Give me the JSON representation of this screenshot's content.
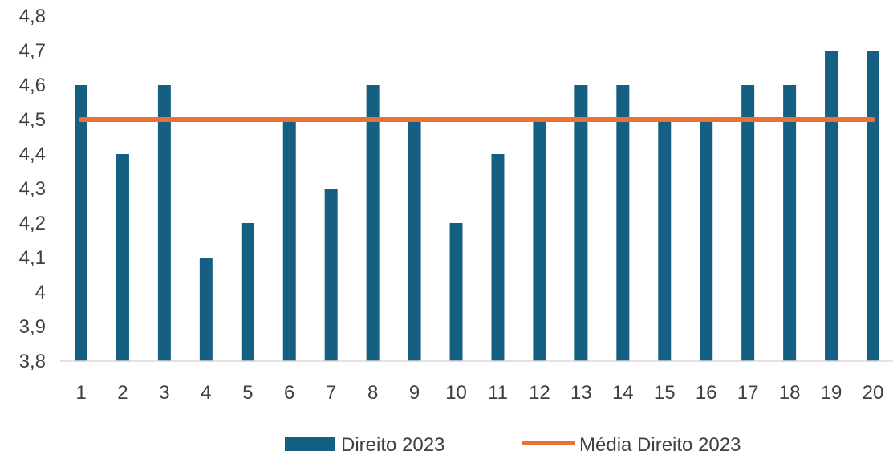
{
  "chart_data": {
    "type": "bar",
    "categories": [
      "1",
      "2",
      "3",
      "4",
      "5",
      "6",
      "7",
      "8",
      "9",
      "10",
      "11",
      "12",
      "13",
      "14",
      "15",
      "16",
      "17",
      "18",
      "19",
      "20"
    ],
    "series": [
      {
        "name": "Direito 2023",
        "type": "bar",
        "color": "#156082",
        "values": [
          4.6,
          4.4,
          4.6,
          4.1,
          4.2,
          4.5,
          4.3,
          4.6,
          4.5,
          4.2,
          4.4,
          4.5,
          4.6,
          4.6,
          4.5,
          4.5,
          4.6,
          4.6,
          4.7,
          4.7
        ]
      },
      {
        "name": "Média Direito 2023",
        "type": "line",
        "color": "#E97132",
        "values": [
          4.5,
          4.5,
          4.5,
          4.5,
          4.5,
          4.5,
          4.5,
          4.5,
          4.5,
          4.5,
          4.5,
          4.5,
          4.5,
          4.5,
          4.5,
          4.5,
          4.5,
          4.5,
          4.5,
          4.5
        ]
      }
    ],
    "ylim": [
      3.8,
      4.8
    ],
    "yticks": [
      "3,8",
      "3,9",
      "4",
      "4,1",
      "4,2",
      "4,3",
      "4,4",
      "4,5",
      "4,6",
      "4,7",
      "4,8"
    ],
    "title": "",
    "xlabel": "",
    "ylabel": "",
    "grid": false,
    "legend": "bottom"
  }
}
